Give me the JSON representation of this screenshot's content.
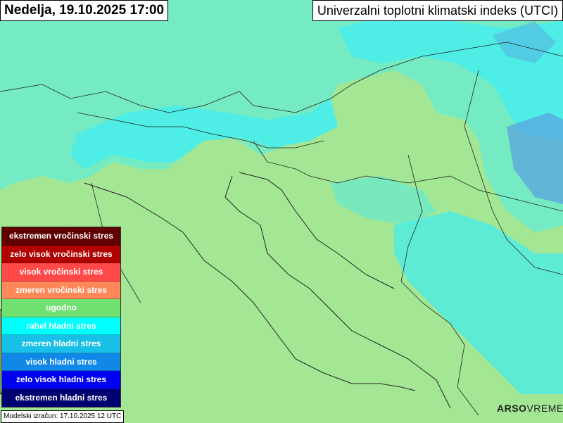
{
  "header": {
    "date_time": "Nedelja, 19.10.2025 17:00",
    "map_title": "Univerzalni toplotni klimatski indeks (UTCI)"
  },
  "legend": [
    {
      "label": "ekstremen vročinski stres",
      "color": "#600000"
    },
    {
      "label": "zelo visok vročinski stres",
      "color": "#b00000"
    },
    {
      "label": "visok vročinski stres",
      "color": "#ff4848"
    },
    {
      "label": "zmeren vročinski stres",
      "color": "#ff8858"
    },
    {
      "label": "ugodno",
      "color": "#70e070"
    },
    {
      "label": "rahel hladni stres",
      "color": "#00ffff"
    },
    {
      "label": "zmeren hladni stres",
      "color": "#18c0e8"
    },
    {
      "label": "visok hladni stres",
      "color": "#1088e8"
    },
    {
      "label": "zelo visok hladni stres",
      "color": "#0000f0"
    },
    {
      "label": "ekstremen hladni stres",
      "color": "#000070"
    }
  ],
  "footer": {
    "model_run": "Modelski izračun: 17.10.2025 12 UTC"
  },
  "logo": {
    "brand": "ARSO",
    "product": "VREME"
  },
  "map_colors": {
    "comfortable": "#a3e795",
    "slight_cold": "#40f0f0",
    "moderate_cold": "#5aa0e0"
  }
}
